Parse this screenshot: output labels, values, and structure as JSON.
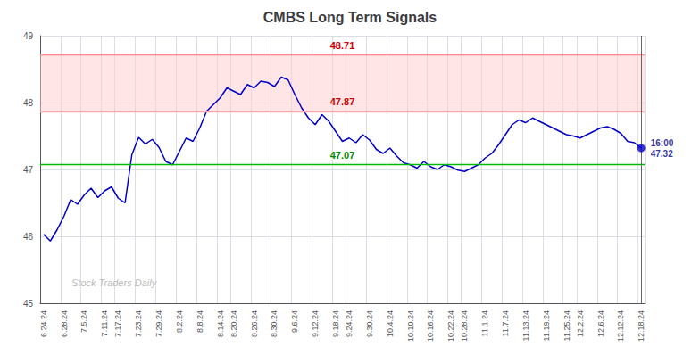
{
  "chart_data": {
    "type": "line",
    "title": "CMBS Long Term Signals",
    "categories": [
      "6.24.24",
      null,
      null,
      "6.28.24",
      null,
      null,
      "7.5.24",
      null,
      null,
      "7.11.24",
      null,
      "7.17.24",
      null,
      null,
      "7.23.24",
      null,
      null,
      "7.29.24",
      null,
      null,
      "8.2.24",
      null,
      null,
      "8.8.24",
      null,
      null,
      "8.14.24",
      null,
      "8.20.24",
      null,
      null,
      "8.26.24",
      null,
      null,
      "8.30.24",
      null,
      null,
      "9.6.24",
      null,
      null,
      "9.12.24",
      null,
      null,
      "9.18.24",
      null,
      "9.24.24",
      null,
      null,
      "9.30.24",
      null,
      null,
      "10.4.24",
      null,
      null,
      "10.10.24",
      null,
      null,
      "10.16.24",
      null,
      null,
      "10.22.24",
      null,
      "10.28.24",
      null,
      null,
      "11.1.24",
      null,
      null,
      "11.7.24",
      null,
      null,
      "11.13.24",
      null,
      null,
      "11.19.24",
      null,
      null,
      "11.25.24",
      null,
      "12.2.24",
      null,
      null,
      "12.6.24",
      null,
      null,
      "12.12.24",
      null,
      null,
      "12.18.24"
    ],
    "values": [
      46.03,
      45.93,
      46.1,
      46.3,
      46.55,
      46.48,
      46.62,
      46.72,
      46.58,
      46.68,
      46.74,
      46.57,
      46.5,
      47.22,
      47.48,
      47.38,
      47.45,
      47.33,
      47.12,
      47.07,
      47.27,
      47.47,
      47.42,
      47.62,
      47.87,
      47.97,
      48.07,
      48.22,
      48.17,
      48.12,
      48.27,
      48.22,
      48.32,
      48.3,
      48.24,
      48.38,
      48.34,
      48.12,
      47.92,
      47.77,
      47.67,
      47.82,
      47.72,
      47.57,
      47.42,
      47.47,
      47.4,
      47.52,
      47.44,
      47.3,
      47.24,
      47.32,
      47.2,
      47.1,
      47.07,
      47.02,
      47.12,
      47.04,
      47.0,
      47.07,
      47.04,
      46.99,
      46.97,
      47.02,
      47.07,
      47.17,
      47.24,
      47.37,
      47.52,
      47.67,
      47.74,
      47.7,
      47.77,
      47.72,
      47.67,
      47.62,
      47.57,
      47.52,
      47.5,
      47.47,
      47.52,
      47.57,
      47.62,
      47.64,
      47.6,
      47.54,
      47.42,
      47.4,
      47.32
    ],
    "color": "#0000cc",
    "ylim": [
      45,
      49
    ],
    "yticks": [
      45,
      46,
      47,
      48,
      49
    ],
    "grid": true,
    "hlines": [
      {
        "value": 48.71,
        "color": "#ff8888",
        "label": "48.71",
        "label_color": "#cc0000"
      },
      {
        "value": 47.87,
        "color": "#ffaaaa",
        "label": "47.87",
        "label_color": "#cc0000"
      },
      {
        "value": 47.07,
        "color": "#00bb00",
        "label": "47.07",
        "label_color": "#008800"
      }
    ],
    "band": {
      "from": 47.87,
      "to": 48.71,
      "color": "#ffcccc"
    },
    "end_marker": {
      "color": "#0000cc",
      "line_color": "#666666",
      "label": "16:00\n47.32",
      "label_color": "#000088"
    },
    "watermark": {
      "text": "Stock Traders Daily",
      "color": "#bbbbbb"
    }
  }
}
